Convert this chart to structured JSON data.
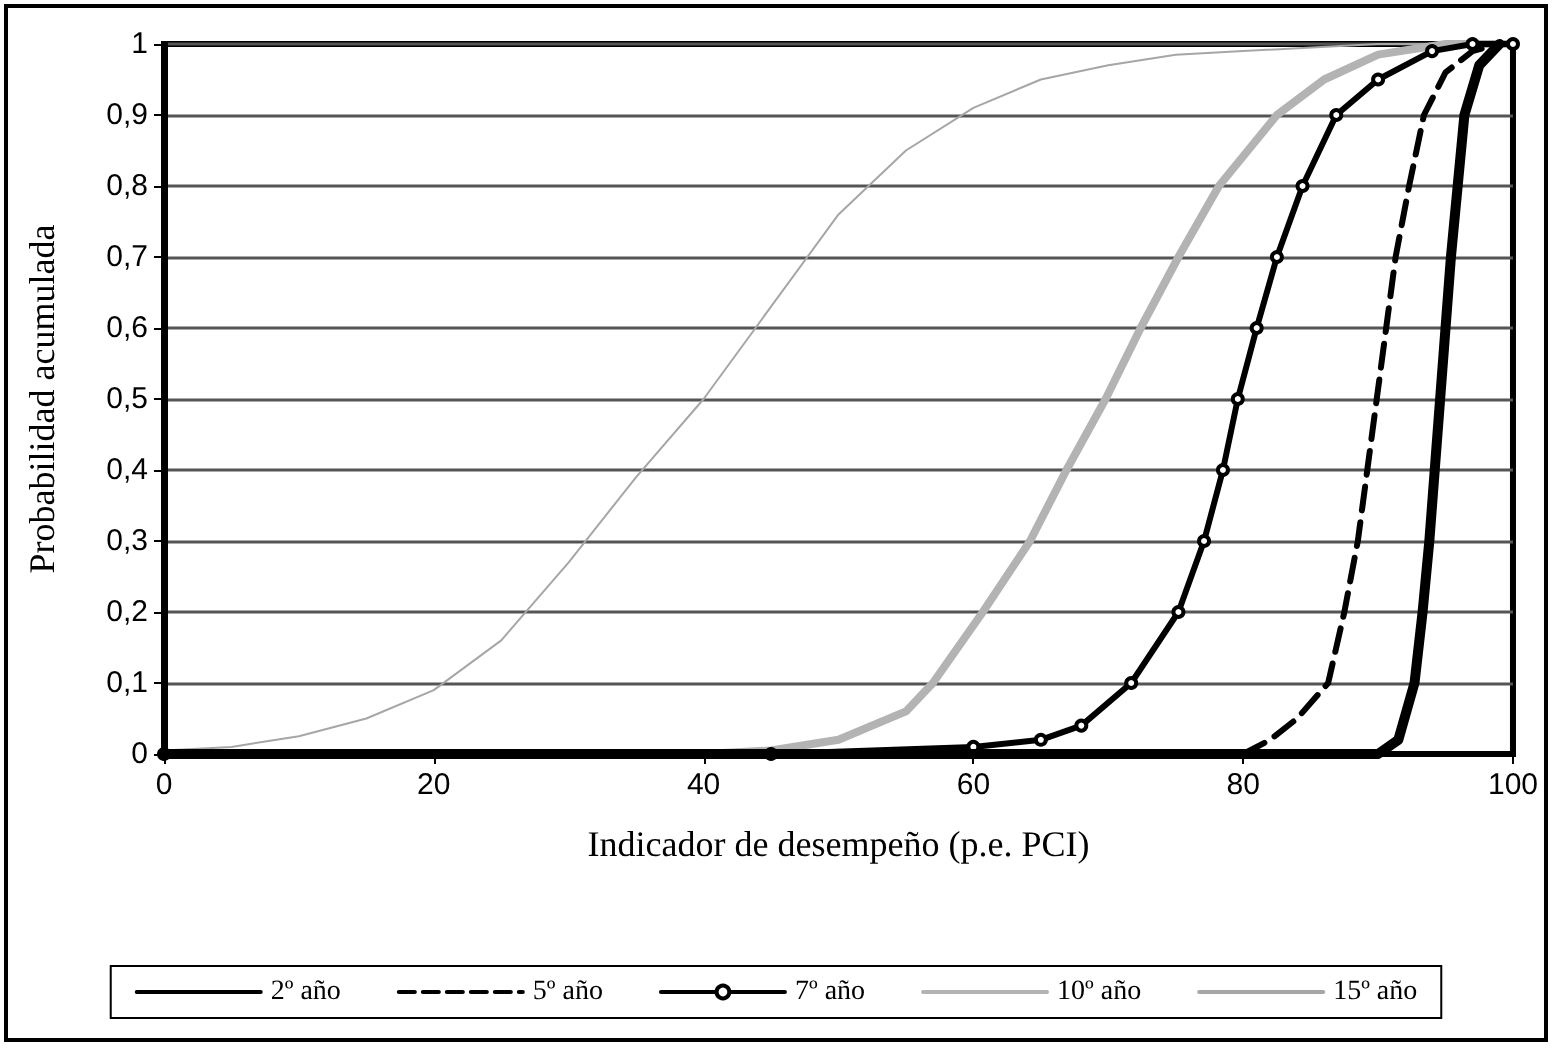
{
  "chart_data": {
    "type": "line",
    "xlabel": "Indicador de desempeño (p.e. PCI)",
    "ylabel": "Probabilidad acumulada",
    "xlim": [
      0,
      100
    ],
    "xticks": [
      0,
      20,
      40,
      60,
      80,
      100
    ],
    "ylim": [
      0,
      1
    ],
    "yticks": [
      0,
      {
        "value": 0.1,
        "label": "0,1"
      },
      {
        "value": 0.2,
        "label": "0,2"
      },
      {
        "value": 0.3,
        "label": "0,3"
      },
      {
        "value": 0.4,
        "label": "0,4"
      },
      {
        "value": 0.5,
        "label": "0,5"
      },
      {
        "value": 0.6,
        "label": "0,6"
      },
      {
        "value": 0.7,
        "label": "0,7"
      },
      {
        "value": 0.8,
        "label": "0,8"
      },
      {
        "value": 0.9,
        "label": "0,9"
      },
      1
    ],
    "grid": "y",
    "legend": "bottom",
    "marker": "none",
    "series": [
      {
        "name": "2º año",
        "color": "#000000",
        "line_style": "solid",
        "x": [
          0,
          90,
          91.5,
          92.7,
          93.3,
          93.8,
          94.2,
          94.6,
          95,
          95.4,
          95.9,
          96.4,
          97.5,
          99
        ],
        "values": [
          0,
          0,
          0.02,
          0.1,
          0.2,
          0.3,
          0.4,
          0.5,
          0.6,
          0.7,
          0.8,
          0.9,
          0.97,
          1
        ]
      },
      {
        "name": "5º año",
        "color": "#000000",
        "line_style": "dashed",
        "x": [
          80,
          82,
          84,
          86.3,
          87.5,
          88.5,
          89.2,
          89.9,
          90.6,
          91.3,
          92.3,
          93.4,
          95,
          97,
          99
        ],
        "values": [
          0,
          0.02,
          0.05,
          0.1,
          0.2,
          0.3,
          0.4,
          0.5,
          0.6,
          0.7,
          0.8,
          0.9,
          0.96,
          0.99,
          1
        ]
      },
      {
        "name": "7º año",
        "color": "#000000",
        "line_style": "solid",
        "marker": "circle",
        "x": [
          0,
          45,
          60,
          65,
          68,
          71.7,
          75.2,
          77.1,
          78.5,
          79.6,
          81,
          82.5,
          84.4,
          86.9,
          90,
          94,
          97,
          100
        ],
        "values": [
          0,
          0,
          0.01,
          0.02,
          0.04,
          0.1,
          0.2,
          0.3,
          0.4,
          0.5,
          0.6,
          0.7,
          0.8,
          0.9,
          0.95,
          0.99,
          1,
          1
        ]
      },
      {
        "name": "10º año",
        "color": "#b3b3b3",
        "line_style": "solid",
        "x": [
          0,
          40,
          45,
          50,
          55,
          57,
          60.7,
          64.2,
          66.9,
          69.8,
          72.4,
          75.2,
          78.2,
          82.5,
          86,
          90,
          95,
          100
        ],
        "values": [
          0,
          0,
          0.005,
          0.02,
          0.06,
          0.1,
          0.2,
          0.3,
          0.4,
          0.5,
          0.6,
          0.7,
          0.8,
          0.9,
          0.95,
          0.985,
          1,
          1
        ]
      },
      {
        "name": "15º año",
        "color": "#a6a6a6",
        "line_style": "solid",
        "x": [
          0,
          5,
          10,
          15,
          20,
          25,
          30,
          35,
          40,
          45,
          50,
          55,
          60,
          65,
          70,
          75,
          80,
          90,
          100
        ],
        "values": [
          0.005,
          0.01,
          0.025,
          0.05,
          0.09,
          0.16,
          0.27,
          0.39,
          0.5,
          0.63,
          0.76,
          0.85,
          0.91,
          0.95,
          0.97,
          0.985,
          0.99,
          1,
          1
        ]
      }
    ]
  }
}
